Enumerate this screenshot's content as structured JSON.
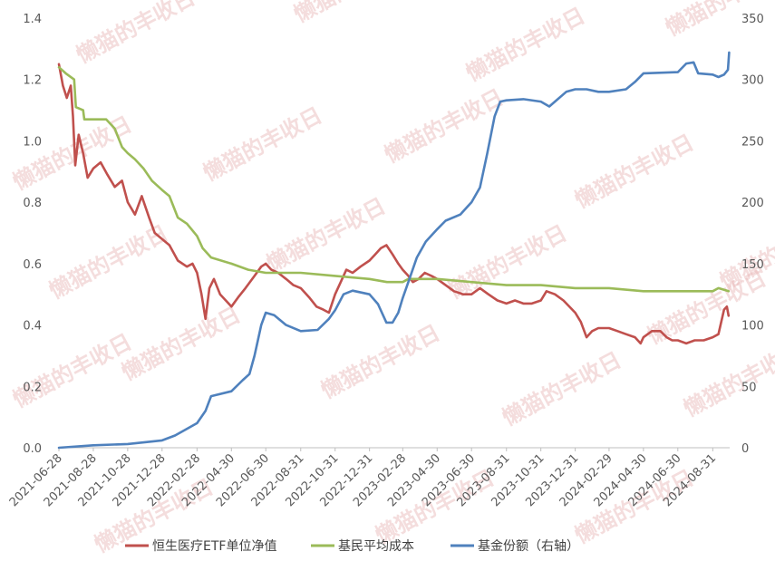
{
  "watermark_text": "懒猫的丰收日",
  "colors": {
    "nav": "#c0504d",
    "cost": "#9bbb59",
    "shares": "#4f81bd",
    "axis_text": "#595959"
  },
  "chart_data": {
    "type": "line",
    "title": "",
    "y_left": {
      "min": 0,
      "max": 1.4,
      "ticks": [
        "0.0",
        "0.2",
        "0.4",
        "0.6",
        "0.8",
        "1.0",
        "1.2",
        "1.4"
      ]
    },
    "y_right": {
      "min": 0,
      "max": 350,
      "ticks": [
        "0",
        "50",
        "100",
        "150",
        "200",
        "250",
        "300",
        "350"
      ]
    },
    "x_range": [
      "2021-06-28",
      "2024-09-30"
    ],
    "x_ticks": [
      "2021-06-28",
      "2021-08-28",
      "2021-10-28",
      "2021-12-28",
      "2022-02-28",
      "2022-04-30",
      "2022-06-30",
      "2022-08-31",
      "2022-10-31",
      "2022-12-31",
      "2023-02-28",
      "2023-04-30",
      "2023-06-30",
      "2023-08-31",
      "2023-10-31",
      "2023-12-31",
      "2024-02-29",
      "2024-04-30",
      "2024-06-30",
      "2024-08-31"
    ],
    "grid": false,
    "legend_position": "bottom",
    "series": [
      {
        "name": "恒生医疗ETF单位净值",
        "axis": "left",
        "color": "#c0504d",
        "points": [
          [
            "2021-06-28",
            1.25
          ],
          [
            "2021-07-05",
            1.18
          ],
          [
            "2021-07-12",
            1.14
          ],
          [
            "2021-07-19",
            1.18
          ],
          [
            "2021-07-23",
            1.08
          ],
          [
            "2021-07-27",
            0.92
          ],
          [
            "2021-08-02",
            1.02
          ],
          [
            "2021-08-10",
            0.96
          ],
          [
            "2021-08-18",
            0.88
          ],
          [
            "2021-08-28",
            0.91
          ],
          [
            "2021-09-10",
            0.93
          ],
          [
            "2021-09-22",
            0.89
          ],
          [
            "2021-10-05",
            0.85
          ],
          [
            "2021-10-18",
            0.87
          ],
          [
            "2021-10-28",
            0.8
          ],
          [
            "2021-11-10",
            0.76
          ],
          [
            "2021-11-22",
            0.82
          ],
          [
            "2021-12-05",
            0.75
          ],
          [
            "2021-12-15",
            0.7
          ],
          [
            "2021-12-28",
            0.68
          ],
          [
            "2022-01-10",
            0.66
          ],
          [
            "2022-01-25",
            0.61
          ],
          [
            "2022-02-10",
            0.59
          ],
          [
            "2022-02-20",
            0.6
          ],
          [
            "2022-02-28",
            0.57
          ],
          [
            "2022-03-08",
            0.5
          ],
          [
            "2022-03-15",
            0.42
          ],
          [
            "2022-03-22",
            0.52
          ],
          [
            "2022-03-30",
            0.55
          ],
          [
            "2022-04-10",
            0.5
          ],
          [
            "2022-04-20",
            0.48
          ],
          [
            "2022-04-30",
            0.46
          ],
          [
            "2022-05-12",
            0.49
          ],
          [
            "2022-05-25",
            0.52
          ],
          [
            "2022-06-10",
            0.56
          ],
          [
            "2022-06-22",
            0.59
          ],
          [
            "2022-06-30",
            0.6
          ],
          [
            "2022-07-10",
            0.58
          ],
          [
            "2022-07-22",
            0.57
          ],
          [
            "2022-08-05",
            0.55
          ],
          [
            "2022-08-18",
            0.53
          ],
          [
            "2022-08-31",
            0.52
          ],
          [
            "2022-09-15",
            0.49
          ],
          [
            "2022-09-28",
            0.46
          ],
          [
            "2022-10-10",
            0.45
          ],
          [
            "2022-10-20",
            0.44
          ],
          [
            "2022-10-31",
            0.5
          ],
          [
            "2022-11-10",
            0.54
          ],
          [
            "2022-11-20",
            0.58
          ],
          [
            "2022-12-01",
            0.57
          ],
          [
            "2022-12-15",
            0.59
          ],
          [
            "2022-12-31",
            0.61
          ],
          [
            "2023-01-10",
            0.63
          ],
          [
            "2023-01-20",
            0.65
          ],
          [
            "2023-01-30",
            0.66
          ],
          [
            "2023-02-10",
            0.63
          ],
          [
            "2023-02-20",
            0.6
          ],
          [
            "2023-02-28",
            0.58
          ],
          [
            "2023-03-10",
            0.56
          ],
          [
            "2023-03-18",
            0.54
          ],
          [
            "2023-03-28",
            0.55
          ],
          [
            "2023-04-08",
            0.57
          ],
          [
            "2023-04-20",
            0.56
          ],
          [
            "2023-04-30",
            0.55
          ],
          [
            "2023-05-15",
            0.53
          ],
          [
            "2023-05-30",
            0.51
          ],
          [
            "2023-06-15",
            0.5
          ],
          [
            "2023-06-30",
            0.5
          ],
          [
            "2023-07-15",
            0.52
          ],
          [
            "2023-07-30",
            0.5
          ],
          [
            "2023-08-15",
            0.48
          ],
          [
            "2023-08-31",
            0.47
          ],
          [
            "2023-09-15",
            0.48
          ],
          [
            "2023-09-30",
            0.47
          ],
          [
            "2023-10-15",
            0.47
          ],
          [
            "2023-10-31",
            0.48
          ],
          [
            "2023-11-10",
            0.51
          ],
          [
            "2023-11-25",
            0.5
          ],
          [
            "2023-12-10",
            0.48
          ],
          [
            "2023-12-31",
            0.44
          ],
          [
            "2024-01-10",
            0.41
          ],
          [
            "2024-01-20",
            0.36
          ],
          [
            "2024-01-30",
            0.38
          ],
          [
            "2024-02-10",
            0.39
          ],
          [
            "2024-02-29",
            0.39
          ],
          [
            "2024-03-15",
            0.38
          ],
          [
            "2024-03-30",
            0.37
          ],
          [
            "2024-04-15",
            0.36
          ],
          [
            "2024-04-25",
            0.34
          ],
          [
            "2024-04-30",
            0.36
          ],
          [
            "2024-05-15",
            0.38
          ],
          [
            "2024-05-30",
            0.38
          ],
          [
            "2024-06-10",
            0.36
          ],
          [
            "2024-06-20",
            0.35
          ],
          [
            "2024-06-30",
            0.35
          ],
          [
            "2024-07-15",
            0.34
          ],
          [
            "2024-07-30",
            0.35
          ],
          [
            "2024-08-15",
            0.35
          ],
          [
            "2024-08-31",
            0.36
          ],
          [
            "2024-09-10",
            0.37
          ],
          [
            "2024-09-20",
            0.45
          ],
          [
            "2024-09-25",
            0.46
          ],
          [
            "2024-09-28",
            0.43
          ]
        ]
      },
      {
        "name": "基民平均成本",
        "axis": "left",
        "color": "#9bbb59",
        "points": [
          [
            "2021-06-28",
            1.24
          ],
          [
            "2021-07-10",
            1.22
          ],
          [
            "2021-07-25",
            1.2
          ],
          [
            "2021-07-28",
            1.11
          ],
          [
            "2021-08-10",
            1.1
          ],
          [
            "2021-08-12",
            1.07
          ],
          [
            "2021-09-20",
            1.07
          ],
          [
            "2021-10-05",
            1.04
          ],
          [
            "2021-10-18",
            0.98
          ],
          [
            "2021-10-28",
            0.96
          ],
          [
            "2021-11-10",
            0.94
          ],
          [
            "2021-11-25",
            0.91
          ],
          [
            "2021-12-10",
            0.87
          ],
          [
            "2021-12-28",
            0.84
          ],
          [
            "2022-01-10",
            0.82
          ],
          [
            "2022-01-25",
            0.75
          ],
          [
            "2022-02-10",
            0.73
          ],
          [
            "2022-02-28",
            0.69
          ],
          [
            "2022-03-10",
            0.65
          ],
          [
            "2022-03-25",
            0.62
          ],
          [
            "2022-04-30",
            0.6
          ],
          [
            "2022-05-30",
            0.58
          ],
          [
            "2022-06-30",
            0.57
          ],
          [
            "2022-08-31",
            0.57
          ],
          [
            "2022-10-31",
            0.56
          ],
          [
            "2022-12-31",
            0.55
          ],
          [
            "2023-01-31",
            0.54
          ],
          [
            "2023-02-28",
            0.54
          ],
          [
            "2023-03-10",
            0.55
          ],
          [
            "2023-04-30",
            0.55
          ],
          [
            "2023-06-30",
            0.54
          ],
          [
            "2023-08-31",
            0.53
          ],
          [
            "2023-10-31",
            0.53
          ],
          [
            "2023-12-31",
            0.52
          ],
          [
            "2024-02-29",
            0.52
          ],
          [
            "2024-04-30",
            0.51
          ],
          [
            "2024-06-30",
            0.51
          ],
          [
            "2024-08-31",
            0.51
          ],
          [
            "2024-09-10",
            0.52
          ],
          [
            "2024-09-28",
            0.51
          ]
        ]
      },
      {
        "name": "基金份额（右轴）",
        "axis": "right",
        "color": "#4f81bd",
        "points": [
          [
            "2021-06-28",
            0
          ],
          [
            "2021-08-28",
            2
          ],
          [
            "2021-10-28",
            3
          ],
          [
            "2021-12-28",
            6
          ],
          [
            "2022-01-20",
            10
          ],
          [
            "2022-02-28",
            20
          ],
          [
            "2022-03-15",
            30
          ],
          [
            "2022-03-25",
            42
          ],
          [
            "2022-04-30",
            46
          ],
          [
            "2022-05-20",
            55
          ],
          [
            "2022-06-01",
            60
          ],
          [
            "2022-06-10",
            75
          ],
          [
            "2022-06-22",
            100
          ],
          [
            "2022-06-30",
            110
          ],
          [
            "2022-07-15",
            108
          ],
          [
            "2022-08-05",
            100
          ],
          [
            "2022-08-31",
            95
          ],
          [
            "2022-09-30",
            96
          ],
          [
            "2022-10-20",
            105
          ],
          [
            "2022-10-31",
            112
          ],
          [
            "2022-11-15",
            125
          ],
          [
            "2022-12-01",
            128
          ],
          [
            "2022-12-31",
            125
          ],
          [
            "2023-01-15",
            117
          ],
          [
            "2023-01-30",
            102
          ],
          [
            "2023-02-10",
            102
          ],
          [
            "2023-02-20",
            110
          ],
          [
            "2023-02-28",
            122
          ],
          [
            "2023-03-10",
            135
          ],
          [
            "2023-03-25",
            155
          ],
          [
            "2023-04-10",
            168
          ],
          [
            "2023-04-30",
            178
          ],
          [
            "2023-05-15",
            185
          ],
          [
            "2023-06-10",
            190
          ],
          [
            "2023-06-30",
            200
          ],
          [
            "2023-07-15",
            212
          ],
          [
            "2023-07-28",
            240
          ],
          [
            "2023-08-10",
            270
          ],
          [
            "2023-08-20",
            282
          ],
          [
            "2023-08-31",
            283
          ],
          [
            "2023-09-30",
            284
          ],
          [
            "2023-10-31",
            282
          ],
          [
            "2023-11-15",
            278
          ],
          [
            "2023-11-25",
            282
          ],
          [
            "2023-12-15",
            290
          ],
          [
            "2023-12-31",
            292
          ],
          [
            "2024-01-20",
            292
          ],
          [
            "2024-02-10",
            290
          ],
          [
            "2024-02-29",
            290
          ],
          [
            "2024-03-30",
            292
          ],
          [
            "2024-04-15",
            298
          ],
          [
            "2024-04-30",
            305
          ],
          [
            "2024-06-30",
            306
          ],
          [
            "2024-07-15",
            313
          ],
          [
            "2024-07-28",
            314
          ],
          [
            "2024-08-05",
            305
          ],
          [
            "2024-08-31",
            304
          ],
          [
            "2024-09-10",
            302
          ],
          [
            "2024-09-20",
            304
          ],
          [
            "2024-09-27",
            308
          ],
          [
            "2024-09-29",
            322
          ]
        ]
      }
    ]
  }
}
